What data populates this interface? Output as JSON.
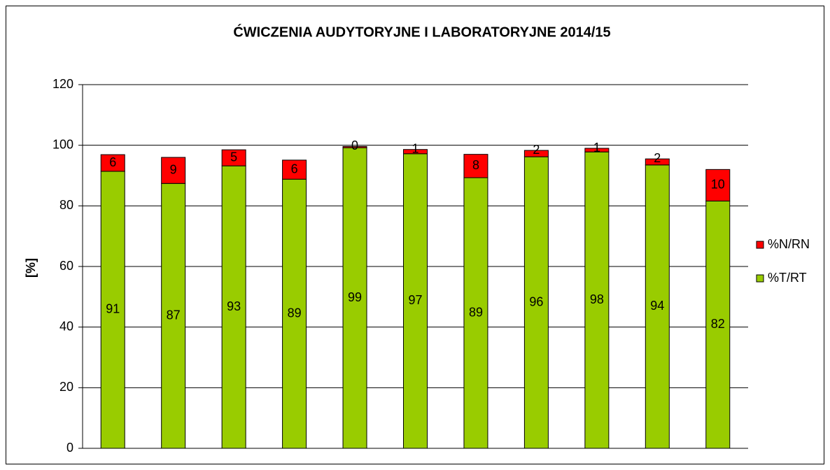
{
  "chart_data": {
    "type": "stacked_bar",
    "title": "ĆWICZENIA AUDYTORYJNE I LABORATORYJNE 2014/15",
    "y_label": "[%]",
    "categories": [
      null,
      null,
      null,
      null,
      null,
      null,
      null,
      null,
      null,
      null,
      null
    ],
    "series": [
      {
        "name": "%T/RT",
        "color": "#99cc00",
        "values": [
          91.4,
          87.4,
          93.2,
          88.8,
          99.2,
          97.2,
          89.3,
          96.2,
          97.8,
          93.5,
          81.6
        ],
        "value_labels": [
          "91",
          "87",
          "93",
          "89",
          "99",
          "97",
          "89",
          "96",
          "98",
          "94",
          "82"
        ]
      },
      {
        "name": "%N/RN",
        "color": "#ff0000",
        "values": [
          5.5,
          8.6,
          5.3,
          6.3,
          0.4,
          1.4,
          7.7,
          2.1,
          1.2,
          2.0,
          10.4
        ],
        "value_labels": [
          "6",
          "9",
          "5",
          "6",
          "0",
          "1",
          "8",
          "2",
          "1",
          "2",
          "10"
        ]
      }
    ],
    "ylim": [
      0,
      120
    ],
    "yticks": [
      0,
      20,
      40,
      60,
      80,
      100,
      120
    ],
    "grid": true,
    "legend": "right"
  }
}
